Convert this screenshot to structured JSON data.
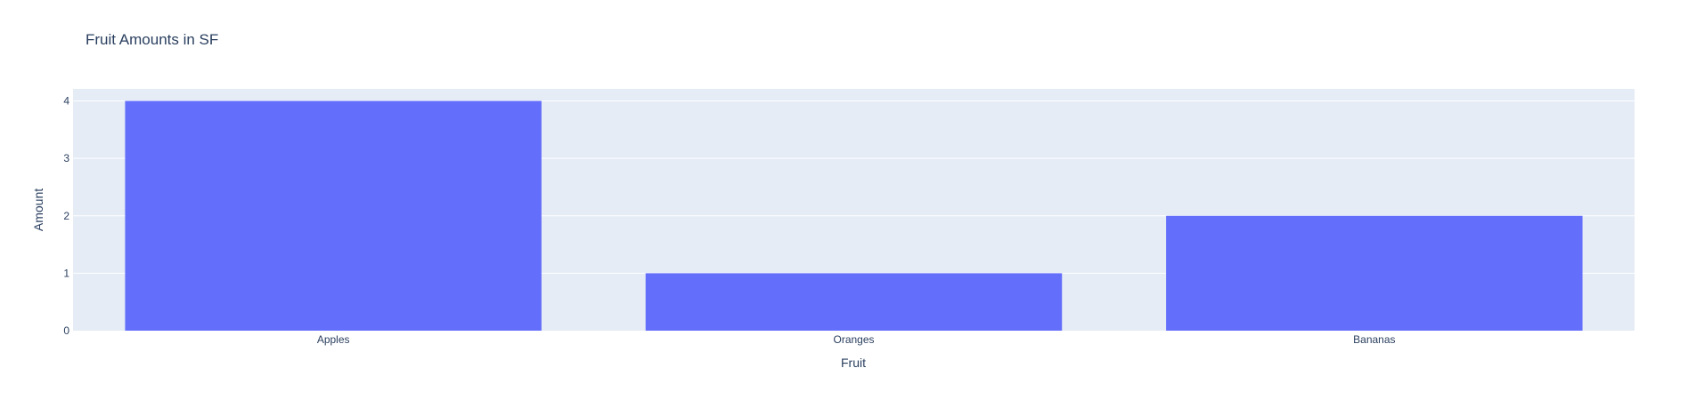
{
  "chart_data": {
    "type": "bar",
    "title": "Fruit Amounts in SF",
    "xlabel": "Fruit",
    "ylabel": "Amount",
    "categories": [
      "Apples",
      "Oranges",
      "Bananas"
    ],
    "values": [
      4,
      1,
      2
    ],
    "ylim": [
      0,
      4.21
    ],
    "yticks": [
      0,
      1,
      2,
      3,
      4
    ],
    "grid": true,
    "colors": {
      "bar": "#636efa",
      "plot_bg": "#e5ecf6",
      "grid": "#ffffff",
      "text": "#2a3f5f"
    }
  }
}
